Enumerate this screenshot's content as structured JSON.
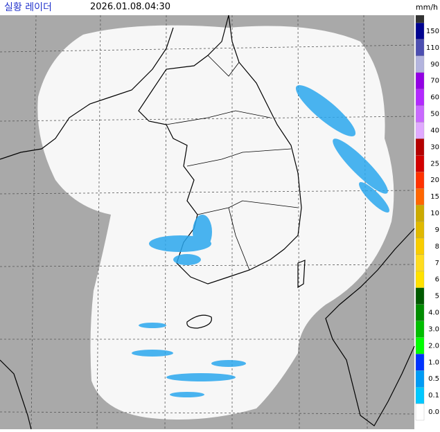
{
  "header": {
    "title": "실황 레이더",
    "time": "2026.01.08.04:30"
  },
  "legend": {
    "unit": "mm/h",
    "top_color": "#333333",
    "items": [
      {
        "label": "150",
        "color": "#000390"
      },
      {
        "label": "110",
        "color": "#4c4eb1"
      },
      {
        "label": "90",
        "color": "#b3b4de"
      },
      {
        "label": "70",
        "color": "#9300e4"
      },
      {
        "label": "60",
        "color": "#b329ff"
      },
      {
        "label": "50",
        "color": "#c969ff"
      },
      {
        "label": "40",
        "color": "#e0a9ff"
      },
      {
        "label": "30",
        "color": "#b40000"
      },
      {
        "label": "25",
        "color": "#d20000"
      },
      {
        "label": "20",
        "color": "#ff3200"
      },
      {
        "label": "15",
        "color": "#ff6600"
      },
      {
        "label": "10",
        "color": "#ccaa00"
      },
      {
        "label": "9",
        "color": "#e0b900"
      },
      {
        "label": "8",
        "color": "#f9cd00"
      },
      {
        "label": "7",
        "color": "#ffdc1f"
      },
      {
        "label": "6",
        "color": "#ffe100"
      },
      {
        "label": "5",
        "color": "#005a00"
      },
      {
        "label": "4.0",
        "color": "#008c00"
      },
      {
        "label": "3.0",
        "color": "#00be00"
      },
      {
        "label": "2.0",
        "color": "#00ff00"
      },
      {
        "label": "1.0",
        "color": "#0033ff"
      },
      {
        "label": "0.5",
        "color": "#009bf5"
      },
      {
        "label": "0.1",
        "color": "#00c8ff"
      },
      {
        "label": "0.0",
        "color": "#ffffff"
      }
    ]
  }
}
